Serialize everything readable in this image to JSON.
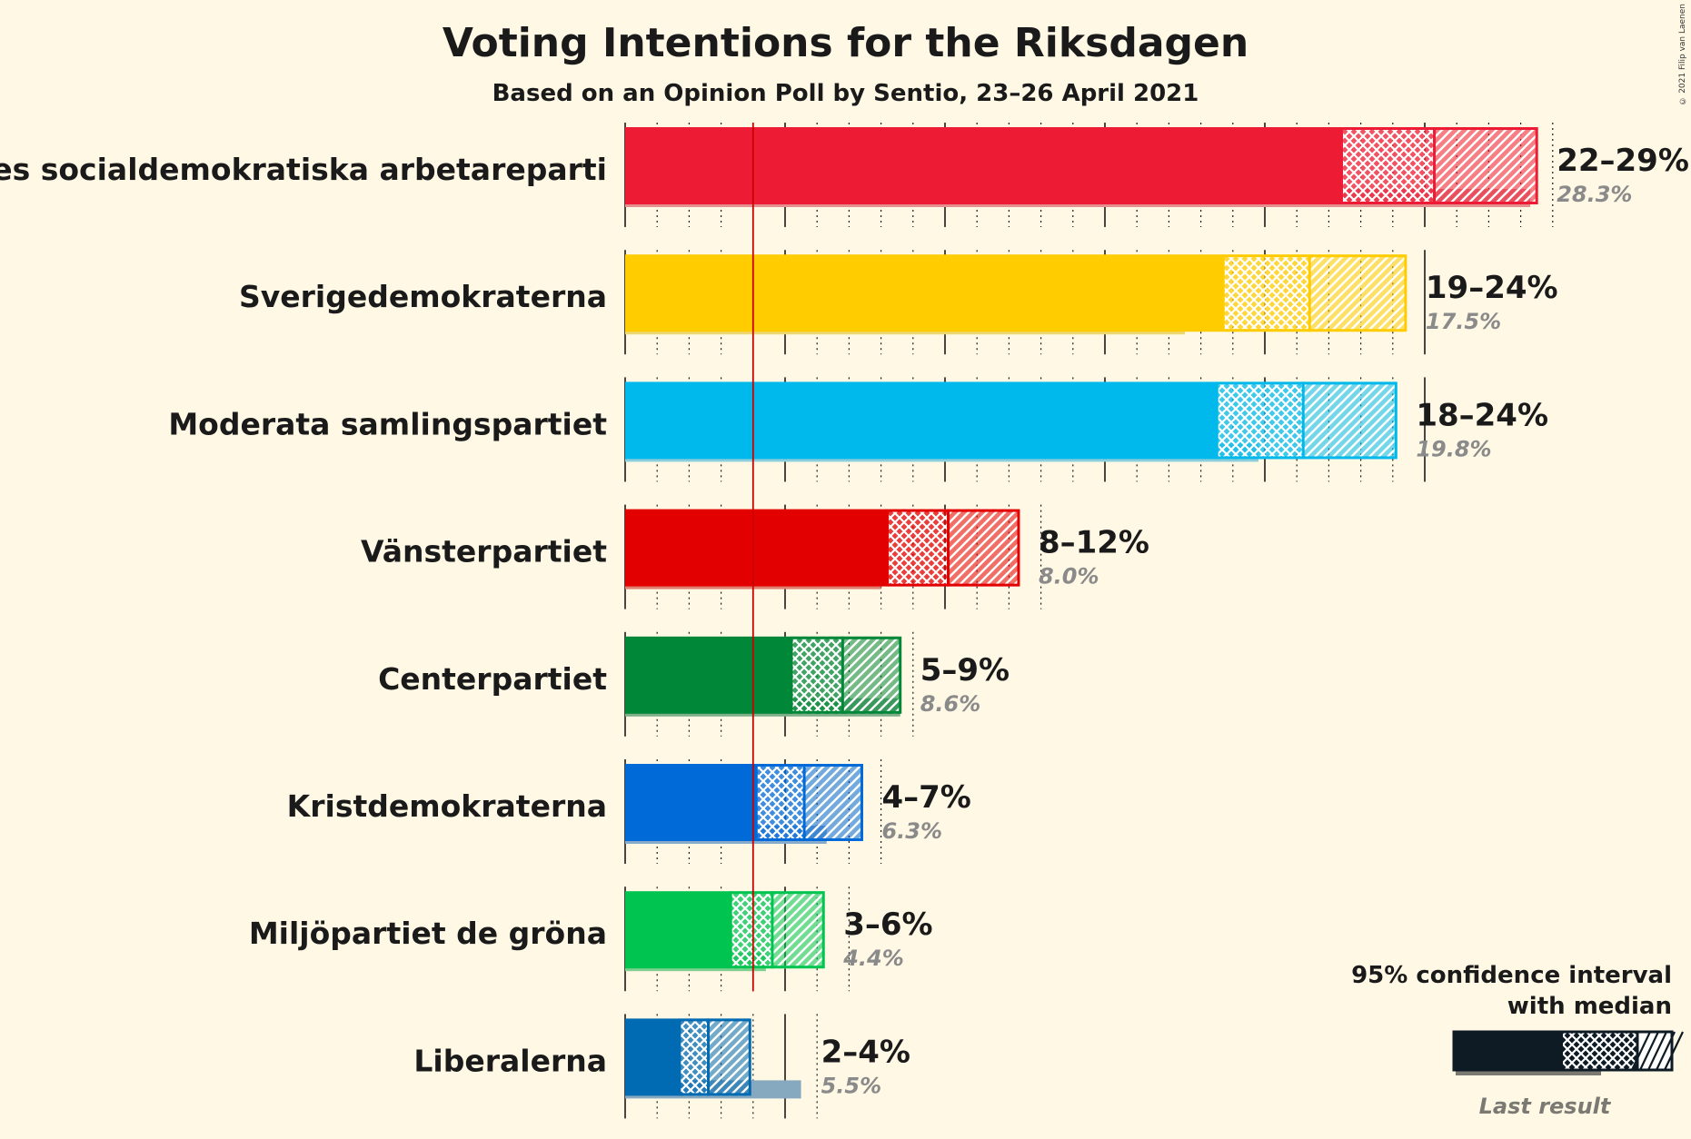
{
  "title": "Voting Intentions for the Riksdagen",
  "subtitle": "Based on an Opinion Poll by Sentio, 23–26 April 2021",
  "copyright": "© 2021 Filip van Laenen",
  "legend": {
    "line1": "95% confidence interval",
    "line2": "with median",
    "last_result_label": "Last result"
  },
  "chart_data": {
    "type": "bar",
    "orientation": "horizontal",
    "title": "Voting Intentions for the Riksdagen",
    "subtitle": "Based on an Opinion Poll by Sentio, 23–26 April 2021",
    "threshold": 4,
    "xlim": [
      0,
      30
    ],
    "grid": true,
    "legend_position": "bottom-right",
    "categories": [
      "Sveriges socialdemokratiska arbetareparti",
      "Sverigedemokraterna",
      "Moderata samlingspartiet",
      "Vänsterpartiet",
      "Centerpartiet",
      "Kristdemokraterna",
      "Miljöpartiet de gröna",
      "Liberalerna"
    ],
    "series": [
      {
        "name": "Sveriges socialdemokratiska arbetareparti",
        "color": "#ed1b34",
        "last_color": "#e59090",
        "low": 22.4,
        "median": 25.3,
        "high": 28.5,
        "range_label": "22–29%",
        "last_result": 28.3,
        "last_label": "28.3%"
      },
      {
        "name": "Sverigedemokraterna",
        "color": "#ffcc00",
        "last_color": "#ecd670",
        "low": 18.7,
        "median": 21.4,
        "high": 24.4,
        "range_label": "19–24%",
        "last_result": 17.5,
        "last_label": "17.5%"
      },
      {
        "name": "Moderata samlingspartiet",
        "color": "#00b9ec",
        "last_color": "#8ccedc",
        "low": 18.5,
        "median": 21.2,
        "high": 24.1,
        "range_label": "18–24%",
        "last_result": 19.8,
        "last_label": "19.8%"
      },
      {
        "name": "Vänsterpartiet",
        "color": "#e30000",
        "last_color": "#e08070",
        "low": 8.2,
        "median": 10.1,
        "high": 12.3,
        "range_label": "8–12%",
        "last_result": 8.0,
        "last_label": "8.0%"
      },
      {
        "name": "Centerpartiet",
        "color": "#008737",
        "last_color": "#7fae89",
        "low": 5.2,
        "median": 6.8,
        "high": 8.6,
        "range_label": "5–9%",
        "last_result": 8.6,
        "last_label": "8.6%"
      },
      {
        "name": "Kristdemokraterna",
        "color": "#006ad9",
        "last_color": "#88aacb",
        "low": 4.1,
        "median": 5.6,
        "high": 7.4,
        "range_label": "4–7%",
        "last_result": 6.3,
        "last_label": "6.3%"
      },
      {
        "name": "Miljöpartiet de gröna",
        "color": "#00c450",
        "last_color": "#7ed090",
        "low": 3.3,
        "median": 4.6,
        "high": 6.2,
        "range_label": "3–6%",
        "last_result": 4.4,
        "last_label": "4.4%"
      },
      {
        "name": "Liberalerna",
        "color": "#006ab3",
        "last_color": "#87a9bf",
        "low": 1.7,
        "median": 2.6,
        "high": 3.9,
        "range_label": "2–4%",
        "last_result": 5.5,
        "last_label": "5.5%"
      }
    ]
  }
}
